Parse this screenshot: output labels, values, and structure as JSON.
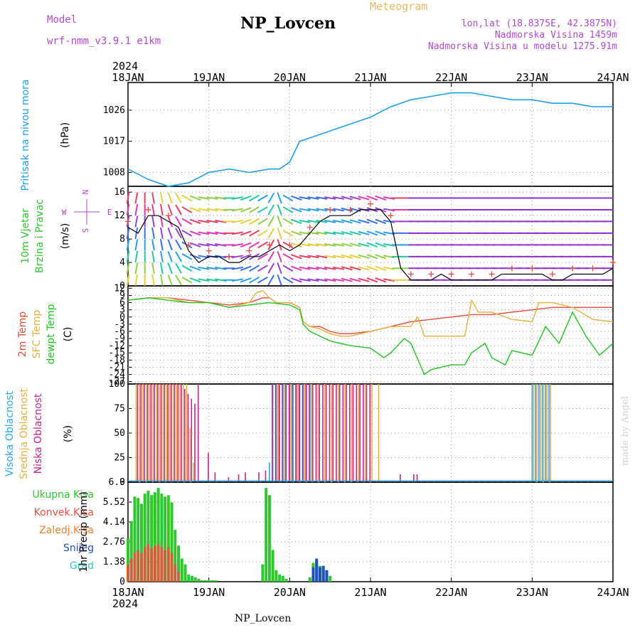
{
  "header": {
    "title": "NP_Lovcen",
    "model_label": "Model",
    "model_name": "wrf-nmm_v3.9.1 e1km",
    "meteogram": "Meteogram",
    "lonlat": "lon,lat (18.8375E, 42.3875N)",
    "altitude": "Nadmorska Visina 1459m",
    "model_altitude": "Nadmorska Visina u modelu 1275.91m"
  },
  "footer": {
    "name": "NP_Lovcen",
    "credit": "made by Angel"
  },
  "colors": {
    "pressure": "#1ea0e8",
    "temp2m": "#e84a3c",
    "sfc": "#e6b040",
    "dewpt": "#22c422",
    "high": "#2aa8e8",
    "mid": "#e6b040",
    "low": "#c0268a",
    "precip": "#2ec82e",
    "conv": "#e8503c",
    "snow": "#2050c0",
    "grad": "#38c8c0",
    "purple": "#b04ad0"
  },
  "chart_data": {
    "type": "line",
    "x_axis": {
      "year_label": "2024",
      "ticks": [
        "18JAN",
        "19JAN",
        "20JAN",
        "21JAN",
        "22JAN",
        "23JAN",
        "24JAN"
      ],
      "range_hours": [
        0,
        144
      ]
    },
    "panels": [
      {
        "id": "pressure",
        "type": "line",
        "ylabel_lines": [
          "Pritisak na nivou mora",
          "(hPa)"
        ],
        "yticks": [
          "1008",
          "1017",
          "1026"
        ],
        "ylim": [
          1004,
          1034
        ],
        "x": [
          0,
          6,
          12,
          18,
          24,
          30,
          36,
          42,
          45,
          48,
          51,
          54,
          60,
          66,
          72,
          78,
          84,
          90,
          96,
          102,
          108,
          114,
          120,
          126,
          132,
          138,
          144
        ],
        "y": [
          1009,
          1006,
          1004,
          1005,
          1008,
          1009,
          1008,
          1009,
          1009,
          1011,
          1017,
          1018,
          1020,
          1022,
          1024,
          1027,
          1029,
          1030,
          1031,
          1031,
          1030,
          1029,
          1029,
          1028,
          1028,
          1027,
          1027
        ]
      },
      {
        "id": "wind",
        "type": "line",
        "ylabel_lines": [
          "10m Vjetar",
          "Brzina i Pravac",
          "(m/s)"
        ],
        "compass": [
          "N",
          "S",
          "W",
          "E"
        ],
        "yticks": [
          "0",
          "4",
          "8",
          "12",
          "16"
        ],
        "ylim": [
          0,
          17
        ],
        "x": [
          0,
          3,
          6,
          9,
          12,
          15,
          18,
          21,
          24,
          27,
          30,
          33,
          36,
          39,
          42,
          45,
          48,
          51,
          54,
          57,
          60,
          63,
          66,
          69,
          72,
          75,
          78,
          81,
          84,
          87,
          90,
          93,
          96,
          99,
          102,
          105,
          108,
          111,
          114,
          117,
          120,
          123,
          126,
          129,
          132,
          135,
          138,
          141,
          144
        ],
        "speed": [
          10,
          9,
          12,
          12,
          11,
          10,
          6,
          4,
          5,
          5,
          4,
          4,
          5,
          5,
          6,
          7,
          6,
          7,
          9,
          11,
          12,
          12,
          12,
          13,
          13,
          13,
          11,
          3,
          1,
          1,
          1,
          2,
          1,
          1,
          1,
          1,
          1,
          2,
          2,
          2,
          2,
          2,
          1,
          1,
          2,
          2,
          2,
          2,
          3
        ],
        "dir_deg": [
          170,
          170,
          180,
          190,
          200,
          210,
          240,
          250,
          260,
          260,
          270,
          280,
          290,
          300,
          330,
          20,
          60,
          70,
          80,
          80,
          80,
          80,
          75,
          75,
          70,
          70,
          80,
          270,
          270,
          270,
          270,
          270,
          270,
          270,
          270,
          270,
          270,
          270,
          270,
          270,
          270,
          270,
          270,
          270,
          270,
          270,
          270,
          270,
          270
        ]
      },
      {
        "id": "temperature",
        "type": "line",
        "ylabel_lines": [
          "2m Temp",
          "SFC Temp",
          "dewpt Temp",
          "(C)"
        ],
        "yticks": [
          "12",
          "9",
          "6",
          "3",
          "0",
          "-3",
          "-6",
          "-9",
          "-12",
          "-15",
          "-18",
          "-21",
          "-24",
          "-27"
        ],
        "ylim": [
          -28,
          13
        ],
        "series": [
          {
            "name": "2m Temp",
            "x": [
              0,
              6,
              12,
              18,
              24,
              30,
              36,
              40,
              42,
              44,
              48,
              51,
              52,
              54,
              57,
              60,
              63,
              66,
              72,
              78,
              84,
              90,
              96,
              102,
              108,
              114,
              120,
              126,
              132,
              138,
              144
            ],
            "y": [
              7,
              8,
              8,
              7,
              6,
              5,
              6,
              8,
              8,
              6,
              6,
              4,
              -2,
              -4,
              -4,
              -6,
              -7,
              -7,
              -6,
              -4,
              -2,
              -1,
              0,
              1,
              1,
              2,
              3,
              4,
              4,
              4,
              4
            ]
          },
          {
            "name": "SFC Temp",
            "x": [
              0,
              6,
              12,
              18,
              24,
              30,
              36,
              38,
              40,
              42,
              44,
              48,
              51,
              52,
              54,
              57,
              60,
              63,
              66,
              72,
              78,
              84,
              86,
              88,
              96,
              100,
              102,
              104,
              108,
              114,
              120,
              122,
              126,
              132,
              138,
              144
            ],
            "y": [
              7,
              8,
              8,
              6,
              6,
              4,
              6,
              10,
              11,
              8,
              6,
              6,
              4,
              -2,
              -4,
              -5,
              -7,
              -8,
              -8,
              -6,
              -4,
              -4,
              0,
              -8,
              -8,
              -8,
              7,
              2,
              2,
              -1,
              -2,
              6,
              6,
              4,
              -1,
              -2
            ]
          },
          {
            "name": "dewpt Temp",
            "x": [
              0,
              6,
              12,
              18,
              24,
              30,
              36,
              42,
              48,
              51,
              52,
              54,
              57,
              60,
              63,
              66,
              72,
              76,
              78,
              82,
              84,
              88,
              90,
              96,
              100,
              102,
              106,
              108,
              112,
              114,
              120,
              124,
              128,
              132,
              136,
              140,
              144
            ],
            "y": [
              7,
              8,
              7,
              6,
              6,
              4,
              5,
              6,
              5,
              3,
              -3,
              -6,
              -8,
              -10,
              -11,
              -12,
              -13,
              -17,
              -15,
              -9,
              -11,
              -24,
              -22,
              -20,
              -20,
              -15,
              -11,
              -17,
              -20,
              -14,
              -16,
              -4,
              -11,
              2,
              -8,
              -16,
              -11
            ]
          }
        ]
      },
      {
        "id": "clouds",
        "type": "bar",
        "ylabel_lines": [
          "Visoka Oblacnost",
          "Srednja Oblacnost",
          "Niska Oblacnost",
          "(%)"
        ],
        "yticks": [
          "0",
          "25",
          "50",
          "75",
          "100"
        ],
        "ylim": [
          0,
          100
        ],
        "series": [
          {
            "name": "Visoka Oblacnost",
            "x": [
              42,
              43,
              44,
              45,
              46,
              47,
              48,
              49,
              50,
              51,
              52,
              53,
              54,
              120,
              121,
              122,
              123,
              124,
              125
            ],
            "values": [
              20,
              100,
              100,
              100,
              100,
              100,
              100,
              100,
              100,
              100,
              100,
              100,
              100,
              100,
              100,
              100,
              100,
              100,
              100
            ]
          },
          {
            "name": "Srednja Oblacnost",
            "x": [
              2,
              3,
              4,
              5,
              6,
              7,
              8,
              9,
              10,
              11,
              12,
              13,
              14,
              15,
              16,
              17,
              18,
              19,
              44,
              46,
              48,
              50,
              52,
              54,
              56,
              58,
              60,
              62,
              64,
              66,
              68,
              70,
              72,
              74,
              120,
              121,
              122,
              123,
              124,
              125
            ],
            "values": [
              100,
              100,
              100,
              100,
              100,
              100,
              100,
              100,
              100,
              100,
              100,
              100,
              100,
              100,
              100,
              100,
              55,
              20,
              100,
              100,
              100,
              100,
              100,
              100,
              100,
              100,
              100,
              100,
              100,
              100,
              100,
              100,
              100,
              100,
              100,
              100,
              100,
              100,
              100,
              100
            ]
          },
          {
            "name": "Niska Oblacnost",
            "x": [
              2,
              3,
              4,
              5,
              6,
              7,
              8,
              9,
              10,
              11,
              12,
              13,
              14,
              15,
              16,
              17,
              18,
              19,
              20,
              23,
              25,
              29,
              32,
              34,
              38,
              40,
              42,
              43,
              44,
              45,
              46,
              47,
              48,
              49,
              50,
              51,
              52,
              53,
              54,
              55,
              56,
              57,
              58,
              59,
              60,
              61,
              62,
              63,
              64,
              65,
              66,
              67,
              68,
              69,
              70,
              71,
              80,
              84,
              85
            ],
            "values": [
              100,
              100,
              100,
              100,
              100,
              100,
              100,
              100,
              100,
              100,
              100,
              100,
              100,
              100,
              95,
              90,
              85,
              80,
              100,
              30,
              10,
              5,
              8,
              10,
              10,
              12,
              100,
              100,
              100,
              100,
              100,
              100,
              100,
              100,
              100,
              100,
              100,
              100,
              100,
              100,
              100,
              100,
              100,
              100,
              100,
              100,
              100,
              100,
              100,
              100,
              100,
              100,
              100,
              100,
              100,
              100,
              8,
              8,
              8
            ]
          }
        ]
      },
      {
        "id": "precip",
        "type": "bar",
        "ylabel_lines": [
          "Ukupna Kisa",
          "Konvek.Kisa",
          "Zaledj.Kisa",
          "Snijeg",
          "Grad",
          "1hr Precip (mm)"
        ],
        "yticks": [
          "0",
          "1.38",
          "2.76",
          "4.14",
          "5.52",
          "6.9"
        ],
        "ylim": [
          0,
          6.9
        ],
        "total": {
          "x": [
            0,
            1,
            2,
            3,
            4,
            5,
            6,
            7,
            8,
            9,
            10,
            11,
            12,
            13,
            14,
            15,
            16,
            17,
            18,
            19,
            20,
            21,
            22,
            23,
            24,
            25,
            26,
            40,
            41,
            42,
            43,
            44,
            45,
            46,
            47,
            54,
            55,
            56,
            57,
            58,
            59,
            60
          ],
          "values": [
            3.0,
            4.2,
            5.9,
            5.8,
            5.4,
            6.1,
            6.3,
            6.0,
            6.2,
            6.5,
            6.1,
            5.9,
            6.0,
            5.5,
            3.6,
            2.5,
            1.6,
            1.2,
            0.5,
            0.4,
            0.3,
            0.2,
            0.1,
            0.1,
            0.1,
            0.1,
            0.1,
            1.2,
            6.5,
            6.0,
            2.2,
            0.8,
            0.5,
            0.4,
            0.2,
            0.3,
            1.3,
            1.5,
            1.1,
            0.8,
            0.7,
            0.4
          ]
        },
        "convective": {
          "x": [
            0,
            1,
            2,
            3,
            4,
            5,
            6,
            7,
            8,
            9,
            10,
            11,
            12,
            13,
            14,
            15
          ],
          "values": [
            1.2,
            1.6,
            2.0,
            2.2,
            2.0,
            2.4,
            2.6,
            2.3,
            2.5,
            2.6,
            2.4,
            2.2,
            2.4,
            2.0,
            1.2,
            0.7
          ]
        },
        "snow": {
          "x": [
            55,
            56,
            57,
            58,
            59
          ],
          "values": [
            1.0,
            1.6,
            1.0,
            1.1,
            0.8
          ]
        }
      }
    ]
  }
}
